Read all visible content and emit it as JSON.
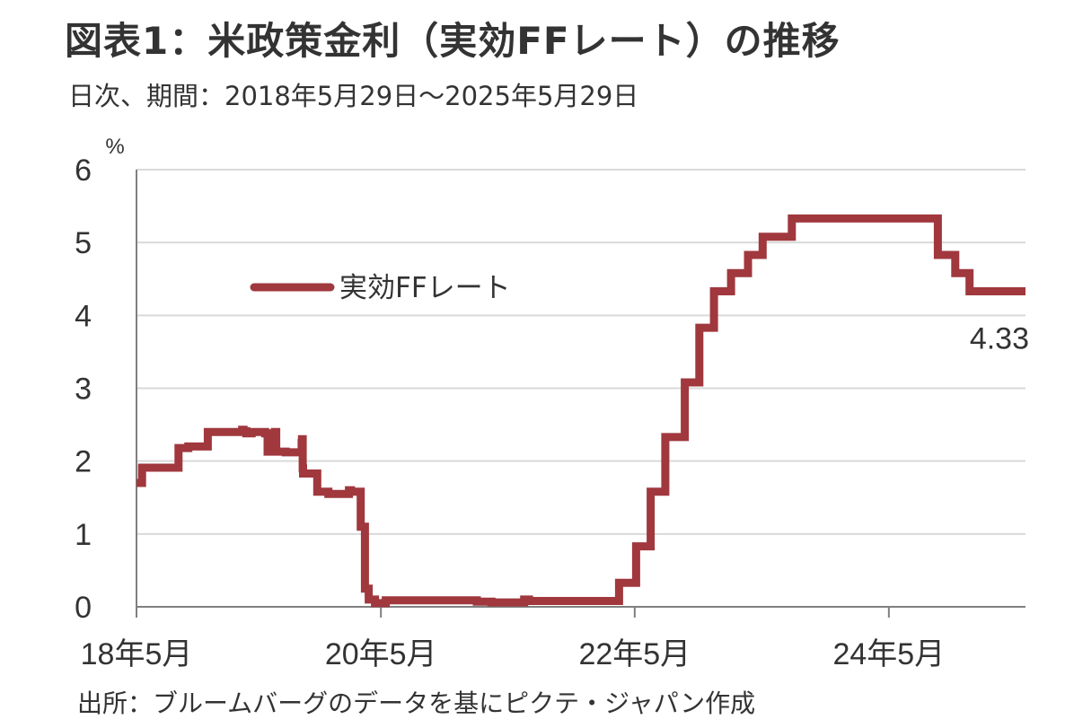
{
  "title": "図表1：米政策金利（実効FFレート）の推移",
  "subtitle": "日次、期間：2018年5月29日～2025年5月29日",
  "source": "出所：ブルームバーグのデータを基にピクテ・ジャパン作成",
  "chart_data": {
    "type": "line",
    "y_unit": "%",
    "ylim": [
      0,
      6
    ],
    "y_ticks": [
      "0",
      "1",
      "2",
      "3",
      "4",
      "5",
      "6"
    ],
    "xlim": [
      "2018-05-29",
      "2025-05-29"
    ],
    "x_ticks": [
      {
        "date": "2018-05-01",
        "label": "18年5月"
      },
      {
        "date": "2020-05-01",
        "label": "20年5月"
      },
      {
        "date": "2022-05-01",
        "label": "22年5月"
      },
      {
        "date": "2024-05-01",
        "label": "24年5月"
      }
    ],
    "grid": "horizontal",
    "legend_position": "upper-left",
    "series": [
      {
        "name": "実効FFレート",
        "color": "#A0383E",
        "step": true,
        "points": [
          [
            "2018-05-29",
            1.7
          ],
          [
            "2018-06-14",
            1.91
          ],
          [
            "2018-09-27",
            2.18
          ],
          [
            "2018-10-25",
            2.2
          ],
          [
            "2018-12-20",
            2.4
          ],
          [
            "2019-03-29",
            2.43
          ],
          [
            "2019-04-02",
            2.41
          ],
          [
            "2019-04-10",
            2.38
          ],
          [
            "2019-04-25",
            2.4
          ],
          [
            "2019-06-03",
            2.38
          ],
          [
            "2019-06-10",
            2.13
          ],
          [
            "2019-07-01",
            2.4
          ],
          [
            "2019-07-05",
            2.13
          ],
          [
            "2019-08-01",
            2.12
          ],
          [
            "2019-09-16",
            2.25
          ],
          [
            "2019-09-17",
            2.3
          ],
          [
            "2019-09-19",
            1.9
          ],
          [
            "2019-09-20",
            1.83
          ],
          [
            "2019-10-31",
            1.58
          ],
          [
            "2019-12-02",
            1.55
          ],
          [
            "2020-01-02",
            1.55
          ],
          [
            "2020-01-30",
            1.6
          ],
          [
            "2020-02-05",
            1.58
          ],
          [
            "2020-03-04",
            1.1
          ],
          [
            "2020-03-16",
            0.25
          ],
          [
            "2020-03-27",
            0.1
          ],
          [
            "2020-04-14",
            0.05
          ],
          [
            "2020-05-01",
            0.05
          ],
          [
            "2020-05-15",
            0.09
          ],
          [
            "2021-01-04",
            0.09
          ],
          [
            "2021-02-01",
            0.07
          ],
          [
            "2021-03-01",
            0.07
          ],
          [
            "2021-03-15",
            0.06
          ],
          [
            "2021-06-17",
            0.1
          ],
          [
            "2021-07-01",
            0.08
          ],
          [
            "2022-03-17",
            0.33
          ],
          [
            "2022-05-05",
            0.83
          ],
          [
            "2022-06-16",
            1.58
          ],
          [
            "2022-07-28",
            2.33
          ],
          [
            "2022-09-22",
            3.08
          ],
          [
            "2022-11-03",
            3.83
          ],
          [
            "2022-12-15",
            4.33
          ],
          [
            "2023-02-02",
            4.58
          ],
          [
            "2023-03-23",
            4.83
          ],
          [
            "2023-05-04",
            5.08
          ],
          [
            "2023-07-27",
            5.33
          ],
          [
            "2024-09-19",
            4.83
          ],
          [
            "2024-11-08",
            4.58
          ],
          [
            "2024-12-19",
            4.33
          ],
          [
            "2025-05-29",
            4.33
          ]
        ]
      }
    ],
    "annotations": [
      {
        "text": "4.33",
        "date": "2025-05-29",
        "value": 4.33,
        "position": "below"
      }
    ]
  }
}
